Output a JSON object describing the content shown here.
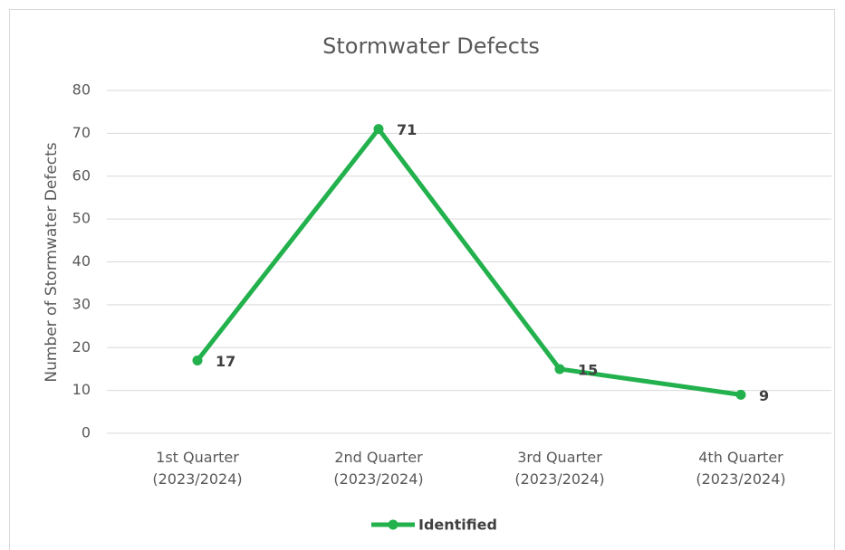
{
  "chart_data": {
    "type": "line",
    "title": "Stormwater Defects",
    "y_label": "Number of Stormwater Defects",
    "categories": [
      "1st Quarter\n(2023/2024)",
      "2nd Quarter\n(2023/2024)",
      "3rd Quarter\n(2023/2024)",
      "4th Quarter\n(2023/2024)"
    ],
    "series": [
      {
        "name": "Identified",
        "color": "#22b14c",
        "values": [
          17,
          71,
          15,
          9
        ]
      }
    ],
    "ylim": [
      0,
      80
    ],
    "yticks": [
      0,
      10,
      20,
      30,
      40,
      50,
      60,
      70,
      80
    ],
    "grid": true,
    "legend": "bottom",
    "data_labels": true
  }
}
